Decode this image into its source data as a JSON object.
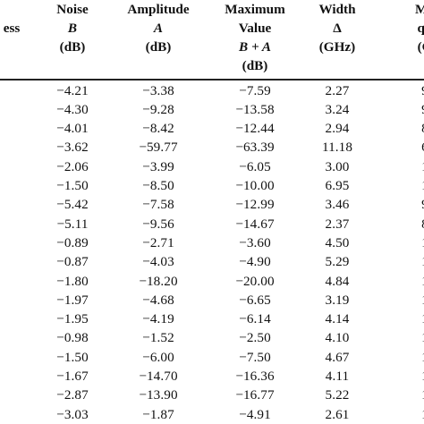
{
  "header": {
    "columns": [
      {
        "key": "c0",
        "lines": [
          "ess"
        ],
        "italic": []
      },
      {
        "key": "noise",
        "lines": [
          "Noise",
          "B",
          "(dB)"
        ],
        "italic": [
          1
        ]
      },
      {
        "key": "amplitude",
        "lines": [
          "Amplitude",
          "A",
          "(dB)"
        ],
        "italic": [
          1
        ]
      },
      {
        "key": "maximum",
        "lines": [
          "Maximum",
          "Value",
          "B + A",
          "(dB)"
        ],
        "italic": [
          2
        ]
      },
      {
        "key": "width",
        "lines": [
          "Width",
          "Δ",
          "(GHz)"
        ],
        "italic": []
      },
      {
        "key": "c5",
        "lines": [
          "Ma",
          "qu",
          "(G"
        ],
        "italic": []
      }
    ]
  },
  "rows": [
    [
      "",
      "−4.21",
      "−3.38",
      "−7.59",
      "2.27",
      "9"
    ],
    [
      "",
      "−4.30",
      "−9.28",
      "−13.58",
      "3.24",
      "9"
    ],
    [
      "",
      "−4.01",
      "−8.42",
      "−12.44",
      "2.94",
      "8"
    ],
    [
      "",
      "−3.62",
      "−59.77",
      "−63.39",
      "11.18",
      "6"
    ],
    [
      "",
      "−2.06",
      "−3.99",
      "−6.05",
      "3.00",
      "1"
    ],
    [
      "",
      "−1.50",
      "−8.50",
      "−10.00",
      "6.95",
      "1"
    ],
    [
      "",
      "−5.42",
      "−7.58",
      "−12.99",
      "3.46",
      "9"
    ],
    [
      "",
      "−5.11",
      "−9.56",
      "−14.67",
      "2.37",
      "8"
    ],
    [
      "",
      "−0.89",
      "−2.71",
      "−3.60",
      "4.50",
      "1"
    ],
    [
      "",
      "−0.87",
      "−4.03",
      "−4.90",
      "5.29",
      "1"
    ],
    [
      "",
      "−1.80",
      "−18.20",
      "−20.00",
      "4.84",
      "1"
    ],
    [
      "",
      "−1.97",
      "−4.68",
      "−6.65",
      "3.19",
      "1"
    ],
    [
      "",
      "−1.95",
      "−4.19",
      "−6.14",
      "4.14",
      "1"
    ],
    [
      "",
      "−0.98",
      "−1.52",
      "−2.50",
      "4.10",
      "1"
    ],
    [
      "",
      "−1.50",
      "−6.00",
      "−7.50",
      "4.67",
      "1"
    ],
    [
      "",
      "−1.67",
      "−14.70",
      "−16.36",
      "4.11",
      "1"
    ],
    [
      "",
      "−2.87",
      "−13.90",
      "−16.77",
      "5.22",
      "1"
    ],
    [
      "",
      "−3.03",
      "−1.87",
      "−4.91",
      "2.61",
      "1"
    ]
  ]
}
